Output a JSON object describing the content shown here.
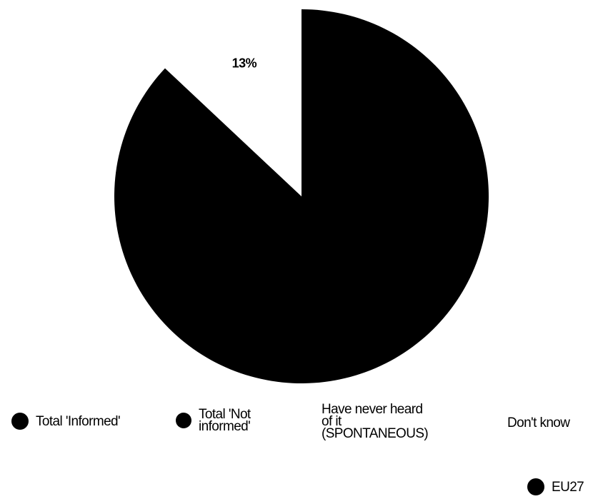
{
  "chart_data": {
    "type": "pie",
    "colors": [
      "#000000",
      "#ffffff",
      "#ffffff",
      "#ffffff"
    ],
    "slices": [
      {
        "label": "Total 'Informed'",
        "value": 87,
        "value_label": ""
      },
      {
        "label": "Total 'Not informed'",
        "value": 13,
        "value_label": "13%"
      },
      {
        "label": "Have never heard of it (SPONTANEOUS)",
        "value": 0,
        "value_label": ""
      },
      {
        "label": "Don't know",
        "value": 0,
        "value_label": ""
      }
    ],
    "legend": [
      {
        "text": "Total 'Informed'",
        "marker": "filled-dot"
      },
      {
        "text": "Total 'Not\ninformed'",
        "marker": "filled-dot"
      },
      {
        "text": "Have never heard\nof it\n(SPONTANEOUS)",
        "marker": "none"
      },
      {
        "text": "Don't know",
        "marker": "none"
      }
    ],
    "series_legend": [
      {
        "text": "EU27",
        "marker": "filled-dot"
      }
    ],
    "legend_position": "bottom"
  }
}
